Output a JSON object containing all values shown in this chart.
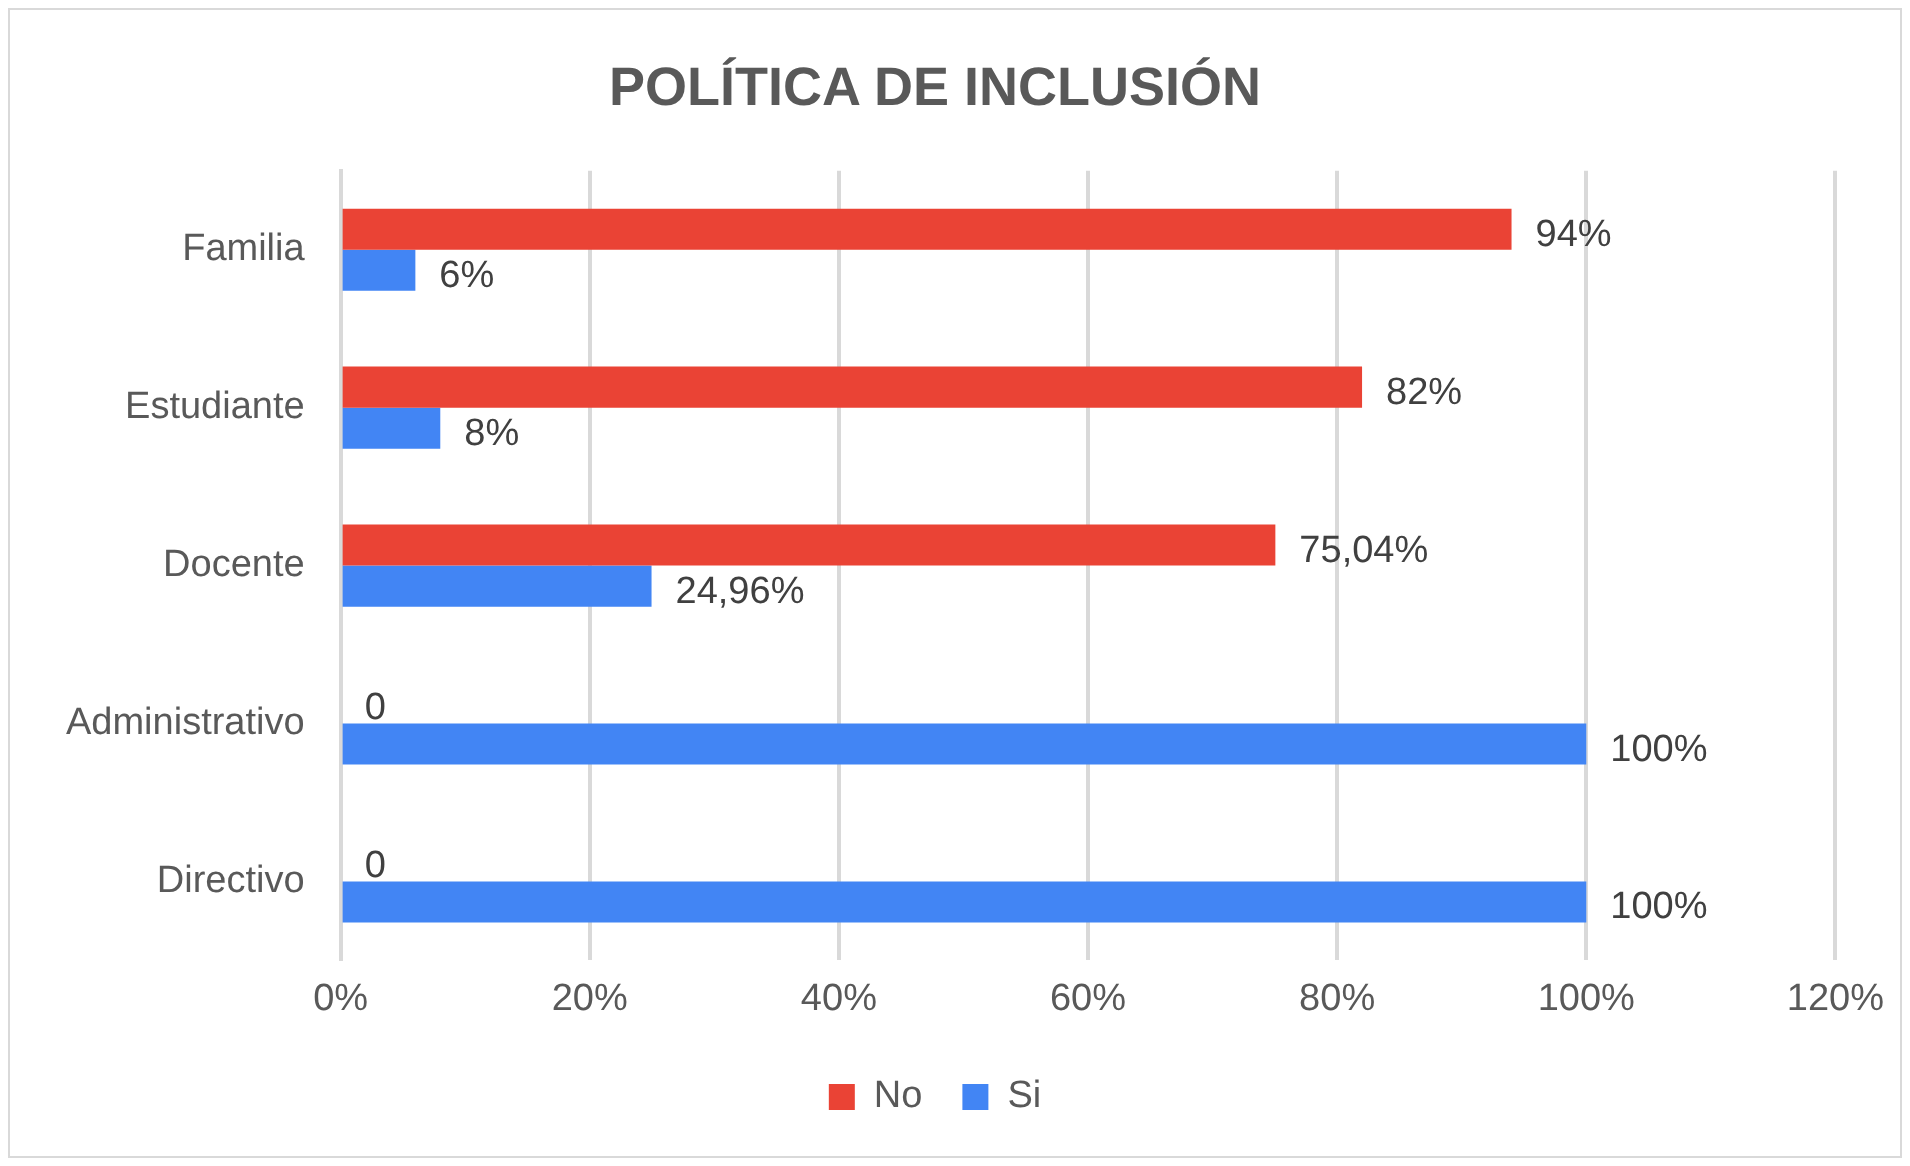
{
  "chart_data": {
    "type": "bar",
    "orientation": "horizontal",
    "title": "POLÍTICA DE INCLUSIÓN",
    "categories": [
      "Familia",
      "Estudiante",
      "Docente",
      "Administrativo",
      "Directivo"
    ],
    "series": [
      {
        "name": "No",
        "color": "#ea4335",
        "values": [
          94,
          82,
          75.04,
          0,
          0
        ],
        "value_labels": [
          "94%",
          "82%",
          "75,04%",
          "0",
          "0"
        ]
      },
      {
        "name": "Si",
        "color": "#4285f4",
        "values": [
          6,
          8,
          24.96,
          100,
          100
        ],
        "value_labels": [
          "6%",
          "8%",
          "24,96%",
          "100%",
          "100%"
        ]
      }
    ],
    "xlim": [
      0,
      120
    ],
    "xticks": [
      {
        "value": 0,
        "label": "0%"
      },
      {
        "value": 20,
        "label": "20%"
      },
      {
        "value": 40,
        "label": "40%"
      },
      {
        "value": 60,
        "label": "60%"
      },
      {
        "value": 80,
        "label": "80%"
      },
      {
        "value": 100,
        "label": "100%"
      },
      {
        "value": 120,
        "label": "120%"
      }
    ],
    "grid": "x",
    "legend": "bottom"
  }
}
